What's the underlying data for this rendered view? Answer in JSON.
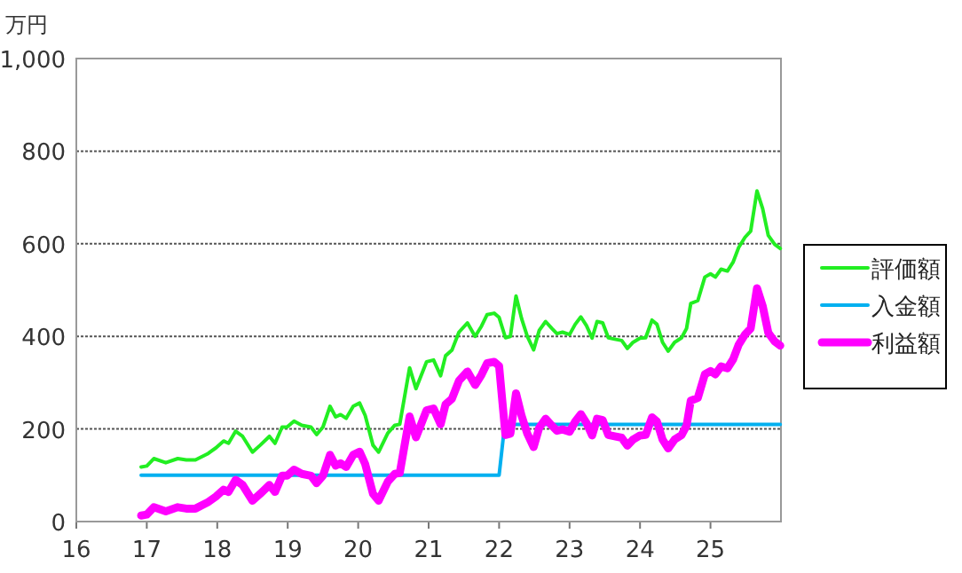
{
  "chart_data": {
    "type": "line",
    "ylabel": "万円",
    "xlim": [
      16,
      26
    ],
    "xticks": [
      16,
      17,
      18,
      19,
      20,
      21,
      22,
      23,
      24,
      25
    ],
    "ylim": [
      0,
      1000
    ],
    "yticks": [
      0,
      200,
      400,
      600,
      800,
      {
        "value": 1000,
        "label": "1,000"
      }
    ],
    "grid": "y",
    "legend": "right",
    "marker": "none",
    "series": [
      {
        "name": "評価額",
        "color": "#22ee22",
        "x": [
          16.92,
          17.0,
          17.1,
          17.27,
          17.44,
          17.56,
          17.69,
          17.86,
          17.98,
          18.09,
          18.16,
          18.26,
          18.36,
          18.5,
          18.61,
          18.74,
          18.82,
          18.92,
          18.99,
          19.09,
          19.2,
          19.33,
          19.41,
          19.5,
          19.6,
          19.68,
          19.75,
          19.83,
          19.93,
          20.02,
          20.1,
          20.21,
          20.29,
          20.42,
          20.52,
          20.59,
          20.73,
          20.82,
          20.97,
          21.07,
          21.17,
          21.24,
          21.33,
          21.43,
          21.55,
          21.66,
          21.75,
          21.83,
          21.93,
          22.0,
          22.09,
          22.16,
          22.24,
          22.32,
          22.4,
          22.49,
          22.57,
          22.66,
          22.75,
          22.82,
          22.9,
          23.0,
          23.08,
          23.16,
          23.24,
          23.32,
          23.39,
          23.47,
          23.55,
          23.64,
          23.74,
          23.82,
          23.9,
          24.0,
          24.08,
          24.17,
          24.24,
          24.32,
          24.4,
          24.49,
          24.59,
          24.66,
          24.72,
          24.82,
          24.92,
          25.0,
          25.07,
          25.15,
          25.24,
          25.32,
          25.4,
          25.49,
          25.57,
          25.66,
          25.74,
          25.82,
          25.91,
          25.99
        ],
        "values": [
          118,
          120,
          136,
          127,
          136,
          133,
          133,
          146,
          159,
          174,
          169,
          195,
          184,
          150,
          165,
          184,
          169,
          204,
          204,
          217,
          208,
          204,
          188,
          204,
          249,
          226,
          231,
          223,
          249,
          256,
          229,
          165,
          150,
          191,
          208,
          210,
          332,
          287,
          345,
          349,
          315,
          358,
          370,
          409,
          429,
          400,
          422,
          447,
          450,
          441,
          397,
          400,
          487,
          438,
          400,
          371,
          413,
          432,
          417,
          406,
          409,
          404,
          426,
          442,
          423,
          396,
          432,
          429,
          397,
          394,
          391,
          374,
          387,
          396,
          397,
          435,
          426,
          387,
          368,
          387,
          397,
          417,
          471,
          477,
          528,
          535,
          528,
          545,
          541,
          560,
          592,
          614,
          627,
          714,
          676,
          618,
          599,
          590
        ]
      },
      {
        "name": "入金額",
        "color": "#00b0f0",
        "x": [
          16.92,
          22.0,
          22.08,
          25.99
        ],
        "values": [
          100,
          100,
          210,
          210
        ]
      },
      {
        "name": "利益額",
        "color": "#ff00ff",
        "x": [
          16.92,
          17.0,
          17.1,
          17.27,
          17.44,
          17.56,
          17.69,
          17.86,
          17.98,
          18.09,
          18.16,
          18.26,
          18.36,
          18.5,
          18.61,
          18.74,
          18.82,
          18.92,
          18.99,
          19.09,
          19.2,
          19.33,
          19.41,
          19.5,
          19.6,
          19.68,
          19.75,
          19.83,
          19.93,
          20.02,
          20.1,
          20.21,
          20.29,
          20.42,
          20.52,
          20.59,
          20.73,
          20.82,
          20.97,
          21.07,
          21.17,
          21.24,
          21.33,
          21.43,
          21.55,
          21.66,
          21.75,
          21.83,
          21.93,
          22.0,
          22.09,
          22.16,
          22.24,
          22.32,
          22.4,
          22.49,
          22.57,
          22.66,
          22.75,
          22.82,
          22.9,
          23.0,
          23.08,
          23.16,
          23.24,
          23.32,
          23.39,
          23.47,
          23.55,
          23.64,
          23.74,
          23.82,
          23.9,
          24.0,
          24.08,
          24.17,
          24.24,
          24.32,
          24.4,
          24.49,
          24.59,
          24.66,
          24.72,
          24.82,
          24.92,
          25.0,
          25.07,
          25.15,
          25.24,
          25.32,
          25.4,
          25.49,
          25.57,
          25.66,
          25.74,
          25.82,
          25.91,
          25.99
        ],
        "values": [
          13,
          15,
          31,
          22,
          31,
          28,
          28,
          41,
          54,
          69,
          64,
          90,
          79,
          45,
          60,
          79,
          64,
          99,
          99,
          112,
          103,
          99,
          83,
          99,
          144,
          121,
          126,
          118,
          144,
          151,
          124,
          60,
          45,
          86,
          103,
          105,
          227,
          182,
          240,
          244,
          210,
          253,
          265,
          304,
          324,
          295,
          317,
          342,
          345,
          336,
          187,
          190,
          277,
          228,
          190,
          161,
          203,
          222,
          207,
          196,
          199,
          194,
          216,
          232,
          213,
          186,
          222,
          219,
          187,
          184,
          181,
          164,
          177,
          186,
          187,
          225,
          216,
          177,
          158,
          177,
          187,
          207,
          261,
          267,
          318,
          325,
          318,
          335,
          331,
          350,
          382,
          404,
          417,
          504,
          466,
          408,
          389,
          380
        ]
      }
    ]
  }
}
